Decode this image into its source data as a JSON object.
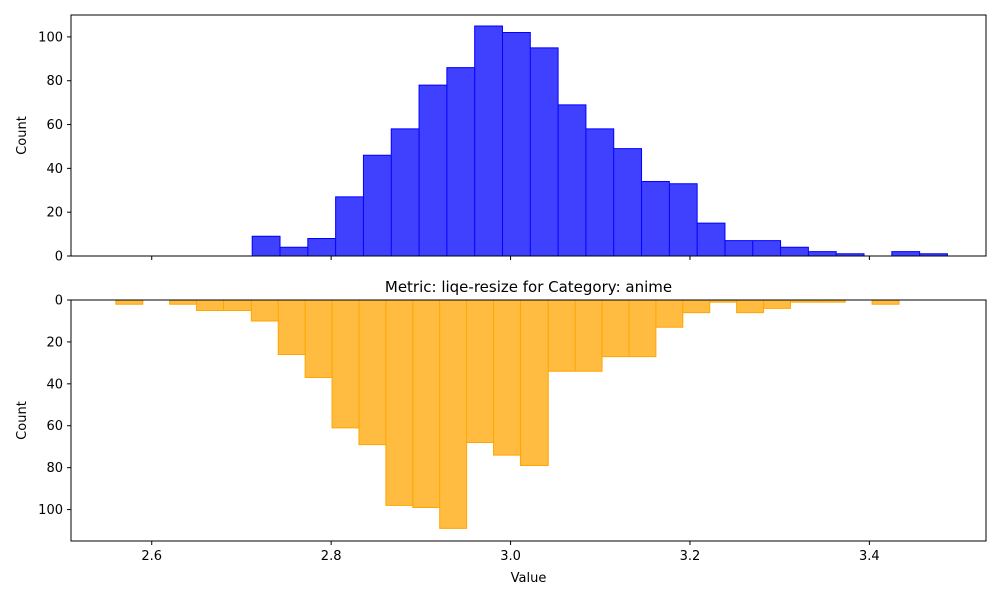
{
  "chart_data": [
    {
      "type": "histogram",
      "title": "",
      "xlabel": "",
      "ylabel": "Count",
      "xlim": [
        2.51,
        3.53
      ],
      "ylim": [
        0,
        110
      ],
      "y_inverted": false,
      "x_ticks": [
        "2.6",
        "2.8",
        "3.0",
        "3.2",
        "3.4"
      ],
      "y_ticks": [
        0,
        20,
        40,
        60,
        80,
        100
      ],
      "show_x_tick_labels": false,
      "color": "#0000ff",
      "bin_edges": [
        2.712,
        2.743,
        2.774,
        2.805,
        2.836,
        2.867,
        2.898,
        2.929,
        2.96,
        2.991,
        3.022,
        3.053,
        3.084,
        3.115,
        3.146,
        3.177,
        3.208,
        3.239,
        3.27,
        3.301,
        3.332,
        3.363,
        3.394,
        3.425,
        3.456,
        3.487
      ],
      "counts": [
        9,
        4,
        8,
        27,
        46,
        58,
        78,
        86,
        105,
        102,
        95,
        69,
        58,
        49,
        34,
        33,
        15,
        7,
        7,
        4,
        2,
        1,
        0,
        2,
        1
      ]
    },
    {
      "type": "histogram",
      "title": "Metric: liqe-resize for Category: anime",
      "xlabel": "Value",
      "ylabel": "Count",
      "xlim": [
        2.51,
        3.53
      ],
      "ylim": [
        0,
        115
      ],
      "y_inverted": true,
      "x_ticks": [
        "2.6",
        "2.8",
        "3.0",
        "3.2",
        "3.4"
      ],
      "y_ticks": [
        0,
        20,
        40,
        60,
        80,
        100
      ],
      "show_x_tick_labels": true,
      "color": "#ffa500",
      "bin_edges": [
        2.56,
        2.59,
        2.62,
        2.65,
        2.68,
        2.711,
        2.741,
        2.771,
        2.801,
        2.831,
        2.861,
        2.891,
        2.921,
        2.951,
        2.981,
        3.011,
        3.042,
        3.072,
        3.102,
        3.132,
        3.162,
        3.192,
        3.222,
        3.252,
        3.282,
        3.312,
        3.343,
        3.373,
        3.403,
        3.433
      ],
      "counts": [
        2,
        0,
        2,
        5,
        5,
        10,
        26,
        37,
        61,
        69,
        98,
        99,
        109,
        68,
        74,
        79,
        34,
        34,
        27,
        27,
        13,
        6,
        1,
        6,
        4,
        1,
        1,
        0,
        2
      ]
    }
  ]
}
